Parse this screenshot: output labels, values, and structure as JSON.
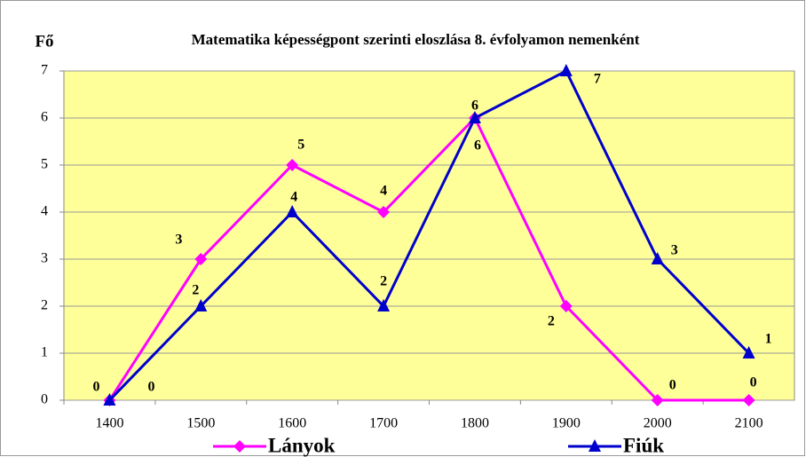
{
  "chart_data": {
    "type": "line",
    "title": "Matematika képességpont szerinti eloszlása 8. évfolyamon nemenként",
    "y_label": "Fő",
    "categories": [
      "1400",
      "1500",
      "1600",
      "1700",
      "1800",
      "1900",
      "2000",
      "2100"
    ],
    "series": [
      {
        "name": "Lányok",
        "color": "#ff00ff",
        "marker": "diamond",
        "values": [
          0,
          3,
          5,
          4,
          6,
          2,
          0,
          0
        ]
      },
      {
        "name": "Fiúk",
        "color": "#0000cc",
        "marker": "triangle",
        "values": [
          0,
          2,
          4,
          2,
          6,
          7,
          3,
          1
        ]
      }
    ],
    "ylim": [
      0,
      7
    ],
    "yticks": [
      0,
      1,
      2,
      3,
      4,
      5,
      6,
      7
    ],
    "grid": true,
    "legend": "bottom"
  }
}
